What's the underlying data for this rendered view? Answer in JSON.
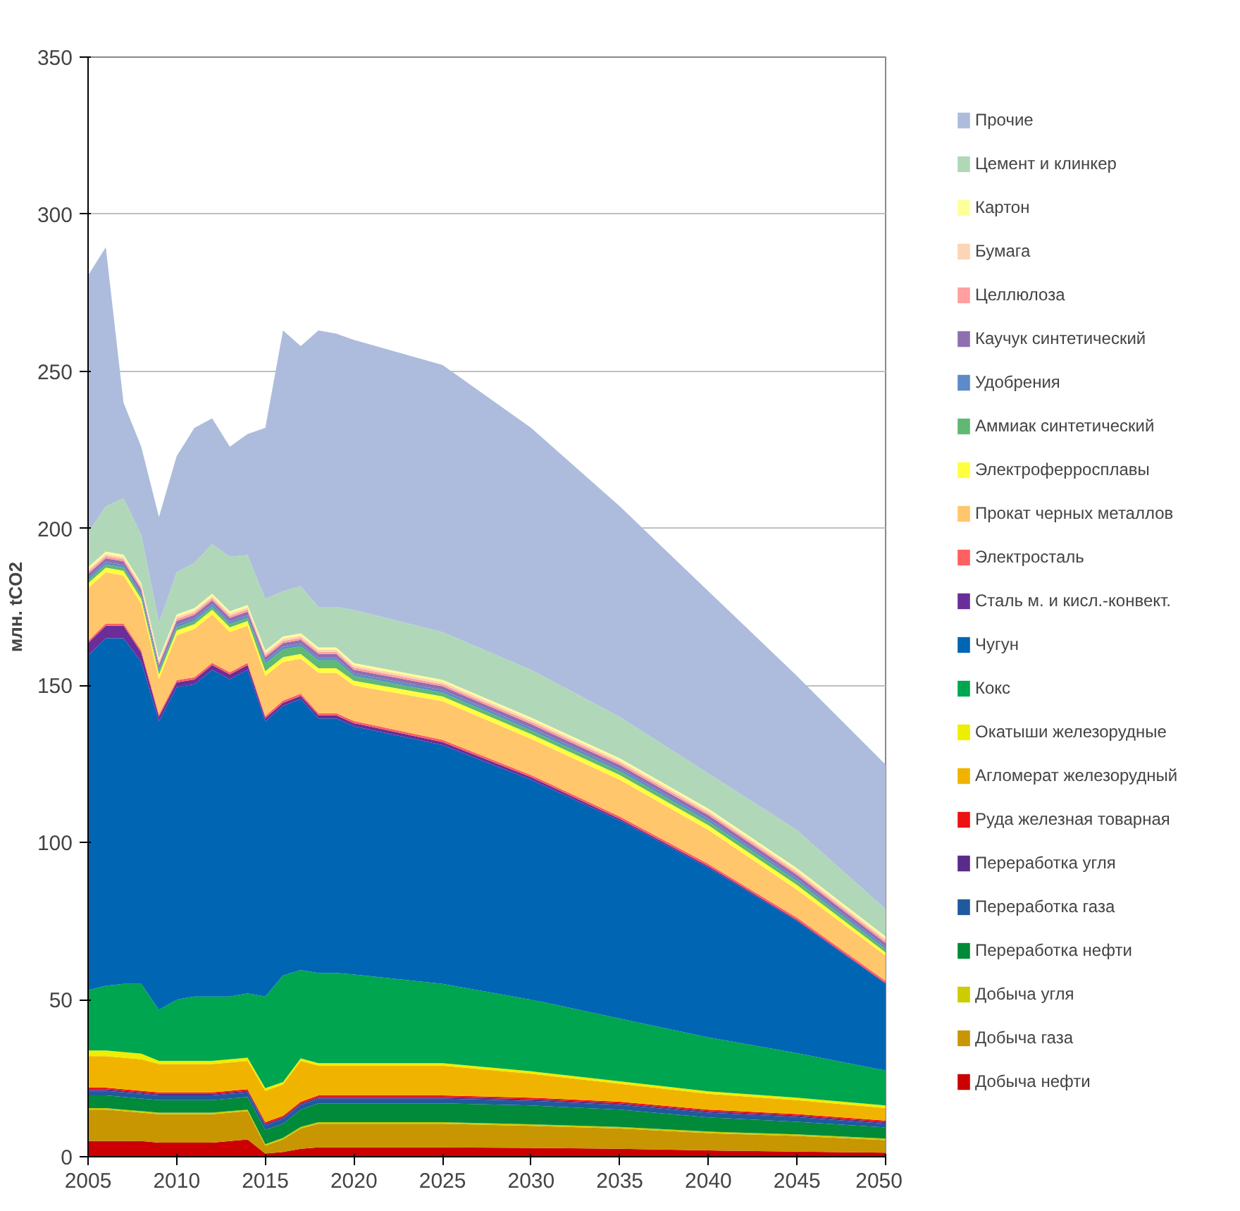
{
  "chart_data": {
    "type": "area",
    "stacked": true,
    "ylabel": "млн. tCO2",
    "x": [
      2005,
      2006,
      2007,
      2008,
      2009,
      2010,
      2011,
      2012,
      2013,
      2014,
      2015,
      2016,
      2017,
      2018,
      2019,
      2020,
      2025,
      2030,
      2035,
      2040,
      2045,
      2050
    ],
    "xlim": [
      2005,
      2050
    ],
    "xticks": [
      2005,
      2010,
      2015,
      2020,
      2025,
      2030,
      2035,
      2040,
      2045,
      2050
    ],
    "ylim": [
      0,
      350
    ],
    "yticks": [
      0,
      50,
      100,
      150,
      200,
      250,
      300,
      350
    ],
    "grid": "y",
    "legend": "right",
    "series": [
      {
        "name": "Добыча нефти",
        "color": "#cc0000",
        "values": [
          5,
          5,
          5,
          5,
          4.5,
          4.5,
          4.5,
          4.5,
          5,
          5.5,
          1,
          1.5,
          2.5,
          3,
          3,
          3,
          3,
          2.8,
          2.5,
          2,
          1.6,
          1.3
        ]
      },
      {
        "name": "Добыча газа",
        "color": "#c89600",
        "values": [
          10,
          10,
          9.5,
          9,
          9,
          9,
          9,
          9,
          9,
          9,
          2.5,
          4,
          6.5,
          7.5,
          7.5,
          7.5,
          7.5,
          7,
          6.5,
          5.5,
          5,
          4
        ]
      },
      {
        "name": "Добыча угля",
        "color": "#cccc00",
        "values": [
          0.5,
          0.5,
          0.5,
          0.5,
          0.5,
          0.5,
          0.5,
          0.5,
          0.5,
          0.5,
          0.5,
          0.5,
          0.5,
          0.5,
          0.5,
          0.5,
          0.5,
          0.5,
          0.5,
          0.5,
          0.5,
          0.5
        ]
      },
      {
        "name": "Переработка нефти",
        "color": "#008a3a",
        "values": [
          4,
          4,
          4,
          4,
          4,
          4,
          4,
          4,
          4,
          4,
          4.5,
          4.5,
          5.5,
          6,
          6,
          6,
          6,
          6,
          5.5,
          4.5,
          4,
          3.5
        ]
      },
      {
        "name": "Переработка газа",
        "color": "#1f5a9e",
        "values": [
          1.5,
          1.5,
          1.5,
          1.5,
          1.5,
          1.5,
          1.5,
          1.5,
          1.5,
          1.5,
          1.5,
          1.5,
          1.5,
          1.5,
          1.5,
          1.5,
          1.5,
          1.5,
          1.5,
          1.5,
          1.5,
          1.2
        ]
      },
      {
        "name": "Переработка угля",
        "color": "#5a2b8a",
        "values": [
          0.5,
          0.5,
          0.5,
          0.5,
          0.5,
          0.5,
          0.5,
          0.5,
          0.5,
          0.5,
          0.5,
          0.5,
          0.5,
          0.5,
          0.5,
          0.5,
          0.5,
          0.5,
          0.5,
          0.5,
          0.5,
          0.5
        ]
      },
      {
        "name": "Руда железная товарная",
        "color": "#ee1111",
        "values": [
          0.5,
          0.5,
          0.5,
          0.5,
          0.5,
          0.5,
          0.5,
          0.5,
          0.5,
          0.5,
          0.5,
          0.5,
          0.5,
          0.5,
          0.5,
          0.5,
          0.5,
          0.5,
          0.5,
          0.5,
          0.5,
          0.5
        ]
      },
      {
        "name": "Агломерат железорудный",
        "color": "#f0b400",
        "values": [
          10,
          10,
          10,
          10,
          9,
          9,
          9,
          9,
          9,
          9,
          10,
          10,
          13,
          9.5,
          9.5,
          9.5,
          9.5,
          7.6,
          5.7,
          5,
          4.4,
          4
        ]
      },
      {
        "name": "Окатыши железорудные",
        "color": "#eeee00",
        "values": [
          1.8,
          1.8,
          1.8,
          1.8,
          1,
          1,
          1,
          1,
          1,
          1,
          0.8,
          0.8,
          0.8,
          0.8,
          0.8,
          0.8,
          0.8,
          0.8,
          0.8,
          0.8,
          0.8,
          0.8
        ]
      },
      {
        "name": "Кокс",
        "color": "#00a550",
        "values": [
          19.2,
          20.6,
          21.7,
          22.2,
          16.3,
          19.5,
          20.5,
          20.5,
          20,
          20.5,
          29.2,
          33.9,
          28.1,
          28.7,
          28.7,
          28.2,
          25.2,
          22.8,
          20,
          17.2,
          14.2,
          11.1
        ]
      },
      {
        "name": "Чугун",
        "color": "#0065b3",
        "values": [
          106.5,
          110.6,
          110,
          102.5,
          91.8,
          99.5,
          99.4,
          104,
          101,
          103,
          87.6,
          85.8,
          86.3,
          81,
          81,
          79,
          76,
          70,
          63,
          54,
          42,
          27.6
        ]
      },
      {
        "name": "Сталь м. и кисл.-конвект.",
        "color": "#6a2d9a",
        "values": [
          4,
          4,
          4,
          3,
          1.5,
          1.5,
          1.5,
          1.5,
          1.5,
          1.5,
          1,
          1,
          1,
          1,
          1,
          1,
          1,
          0.8,
          0.6,
          0.5,
          0.4,
          0.3
        ]
      },
      {
        "name": "Электросталь",
        "color": "#ff6060",
        "values": [
          0.7,
          0.7,
          0.7,
          0.7,
          0.7,
          0.7,
          0.7,
          0.7,
          0.7,
          0.7,
          0.7,
          0.7,
          0.7,
          0.7,
          0.7,
          0.7,
          0.7,
          0.7,
          0.7,
          0.7,
          0.7,
          0.7
        ]
      },
      {
        "name": "Прокат черных металлов",
        "color": "#ffc66b",
        "values": [
          16.8,
          16.3,
          15.3,
          14.8,
          11.2,
          14.3,
          15.4,
          15.4,
          12.8,
          11.8,
          12.7,
          12.3,
          11.1,
          12.8,
          12.8,
          11.3,
          12.3,
          11.5,
          11.7,
          10.8,
          8.9,
          8.0
        ]
      },
      {
        "name": "Электроферросплавы",
        "color": "#ffff40",
        "values": [
          1.5,
          1.5,
          1.5,
          1.5,
          1.5,
          1.5,
          1.5,
          1.5,
          1.5,
          1.5,
          1.5,
          1.5,
          1.5,
          1.5,
          1.5,
          1.5,
          1.5,
          1.5,
          1.5,
          1.5,
          1.5,
          1
        ]
      },
      {
        "name": "Аммиак синтетический",
        "color": "#5fb873",
        "values": [
          1,
          1,
          1,
          1,
          1,
          1,
          1,
          1,
          1,
          1,
          2.5,
          2.5,
          2.5,
          2.5,
          2.5,
          1.5,
          1.2,
          1.2,
          1.2,
          1.2,
          1.2,
          1
        ]
      },
      {
        "name": "Удобрения",
        "color": "#5b8bc8",
        "values": [
          0.8,
          0.8,
          0.8,
          0.8,
          0.8,
          0.8,
          0.8,
          0.8,
          0.8,
          0.8,
          0.8,
          0.8,
          0.8,
          0.8,
          0.8,
          0.8,
          0.8,
          0.8,
          0.8,
          0.8,
          0.8,
          0.8
        ]
      },
      {
        "name": "Каучук синтетический",
        "color": "#8f6fb0",
        "values": [
          1.2,
          1.2,
          1.2,
          1.2,
          1.2,
          1.2,
          1.2,
          1.2,
          1.2,
          1.2,
          1.2,
          1.2,
          1.2,
          1.2,
          1.2,
          1.2,
          1.2,
          1.2,
          1.2,
          1.2,
          1.2,
          1.2
        ]
      },
      {
        "name": "Целлюлоза",
        "color": "#ff9f9f",
        "values": [
          0.7,
          0.7,
          0.7,
          0.7,
          0.7,
          0.7,
          0.7,
          0.7,
          0.7,
          0.7,
          0.7,
          0.7,
          0.7,
          0.7,
          0.7,
          0.7,
          0.7,
          0.7,
          0.7,
          0.7,
          0.7,
          0.7
        ]
      },
      {
        "name": "Бумага",
        "color": "#fcd5b4",
        "values": [
          0.7,
          0.7,
          0.7,
          0.7,
          0.7,
          0.7,
          0.7,
          0.7,
          0.7,
          0.7,
          0.7,
          0.7,
          0.7,
          0.7,
          0.7,
          0.7,
          0.7,
          0.7,
          0.7,
          0.7,
          0.7,
          0.7
        ]
      },
      {
        "name": "Картон",
        "color": "#ffff99",
        "values": [
          0.7,
          0.7,
          0.7,
          0.7,
          0.7,
          0.7,
          0.7,
          0.7,
          0.7,
          0.7,
          0.7,
          0.7,
          0.7,
          0.7,
          0.7,
          0.7,
          0.7,
          0.7,
          0.7,
          0.7,
          0.7,
          0.7
        ]
      },
      {
        "name": "Цемент и клинкер",
        "color": "#b0d8b8",
        "values": [
          11,
          14.4,
          18,
          15.4,
          11.4,
          13.4,
          14.4,
          15.8,
          17.4,
          15.9,
          16.5,
          14.4,
          15,
          12.9,
          12.9,
          16.9,
          15.2,
          15.2,
          13.2,
          11.2,
          12.2,
          8.7
        ]
      },
      {
        "name": "Прочие",
        "color": "#adbcdc",
        "values": [
          81.9,
          82.5,
          30.4,
          28,
          33.6,
          37,
          43,
          40,
          35,
          38.5,
          54.4,
          83,
          76.4,
          88,
          87,
          86,
          85,
          77,
          67,
          58,
          49,
          46
        ]
      }
    ]
  }
}
